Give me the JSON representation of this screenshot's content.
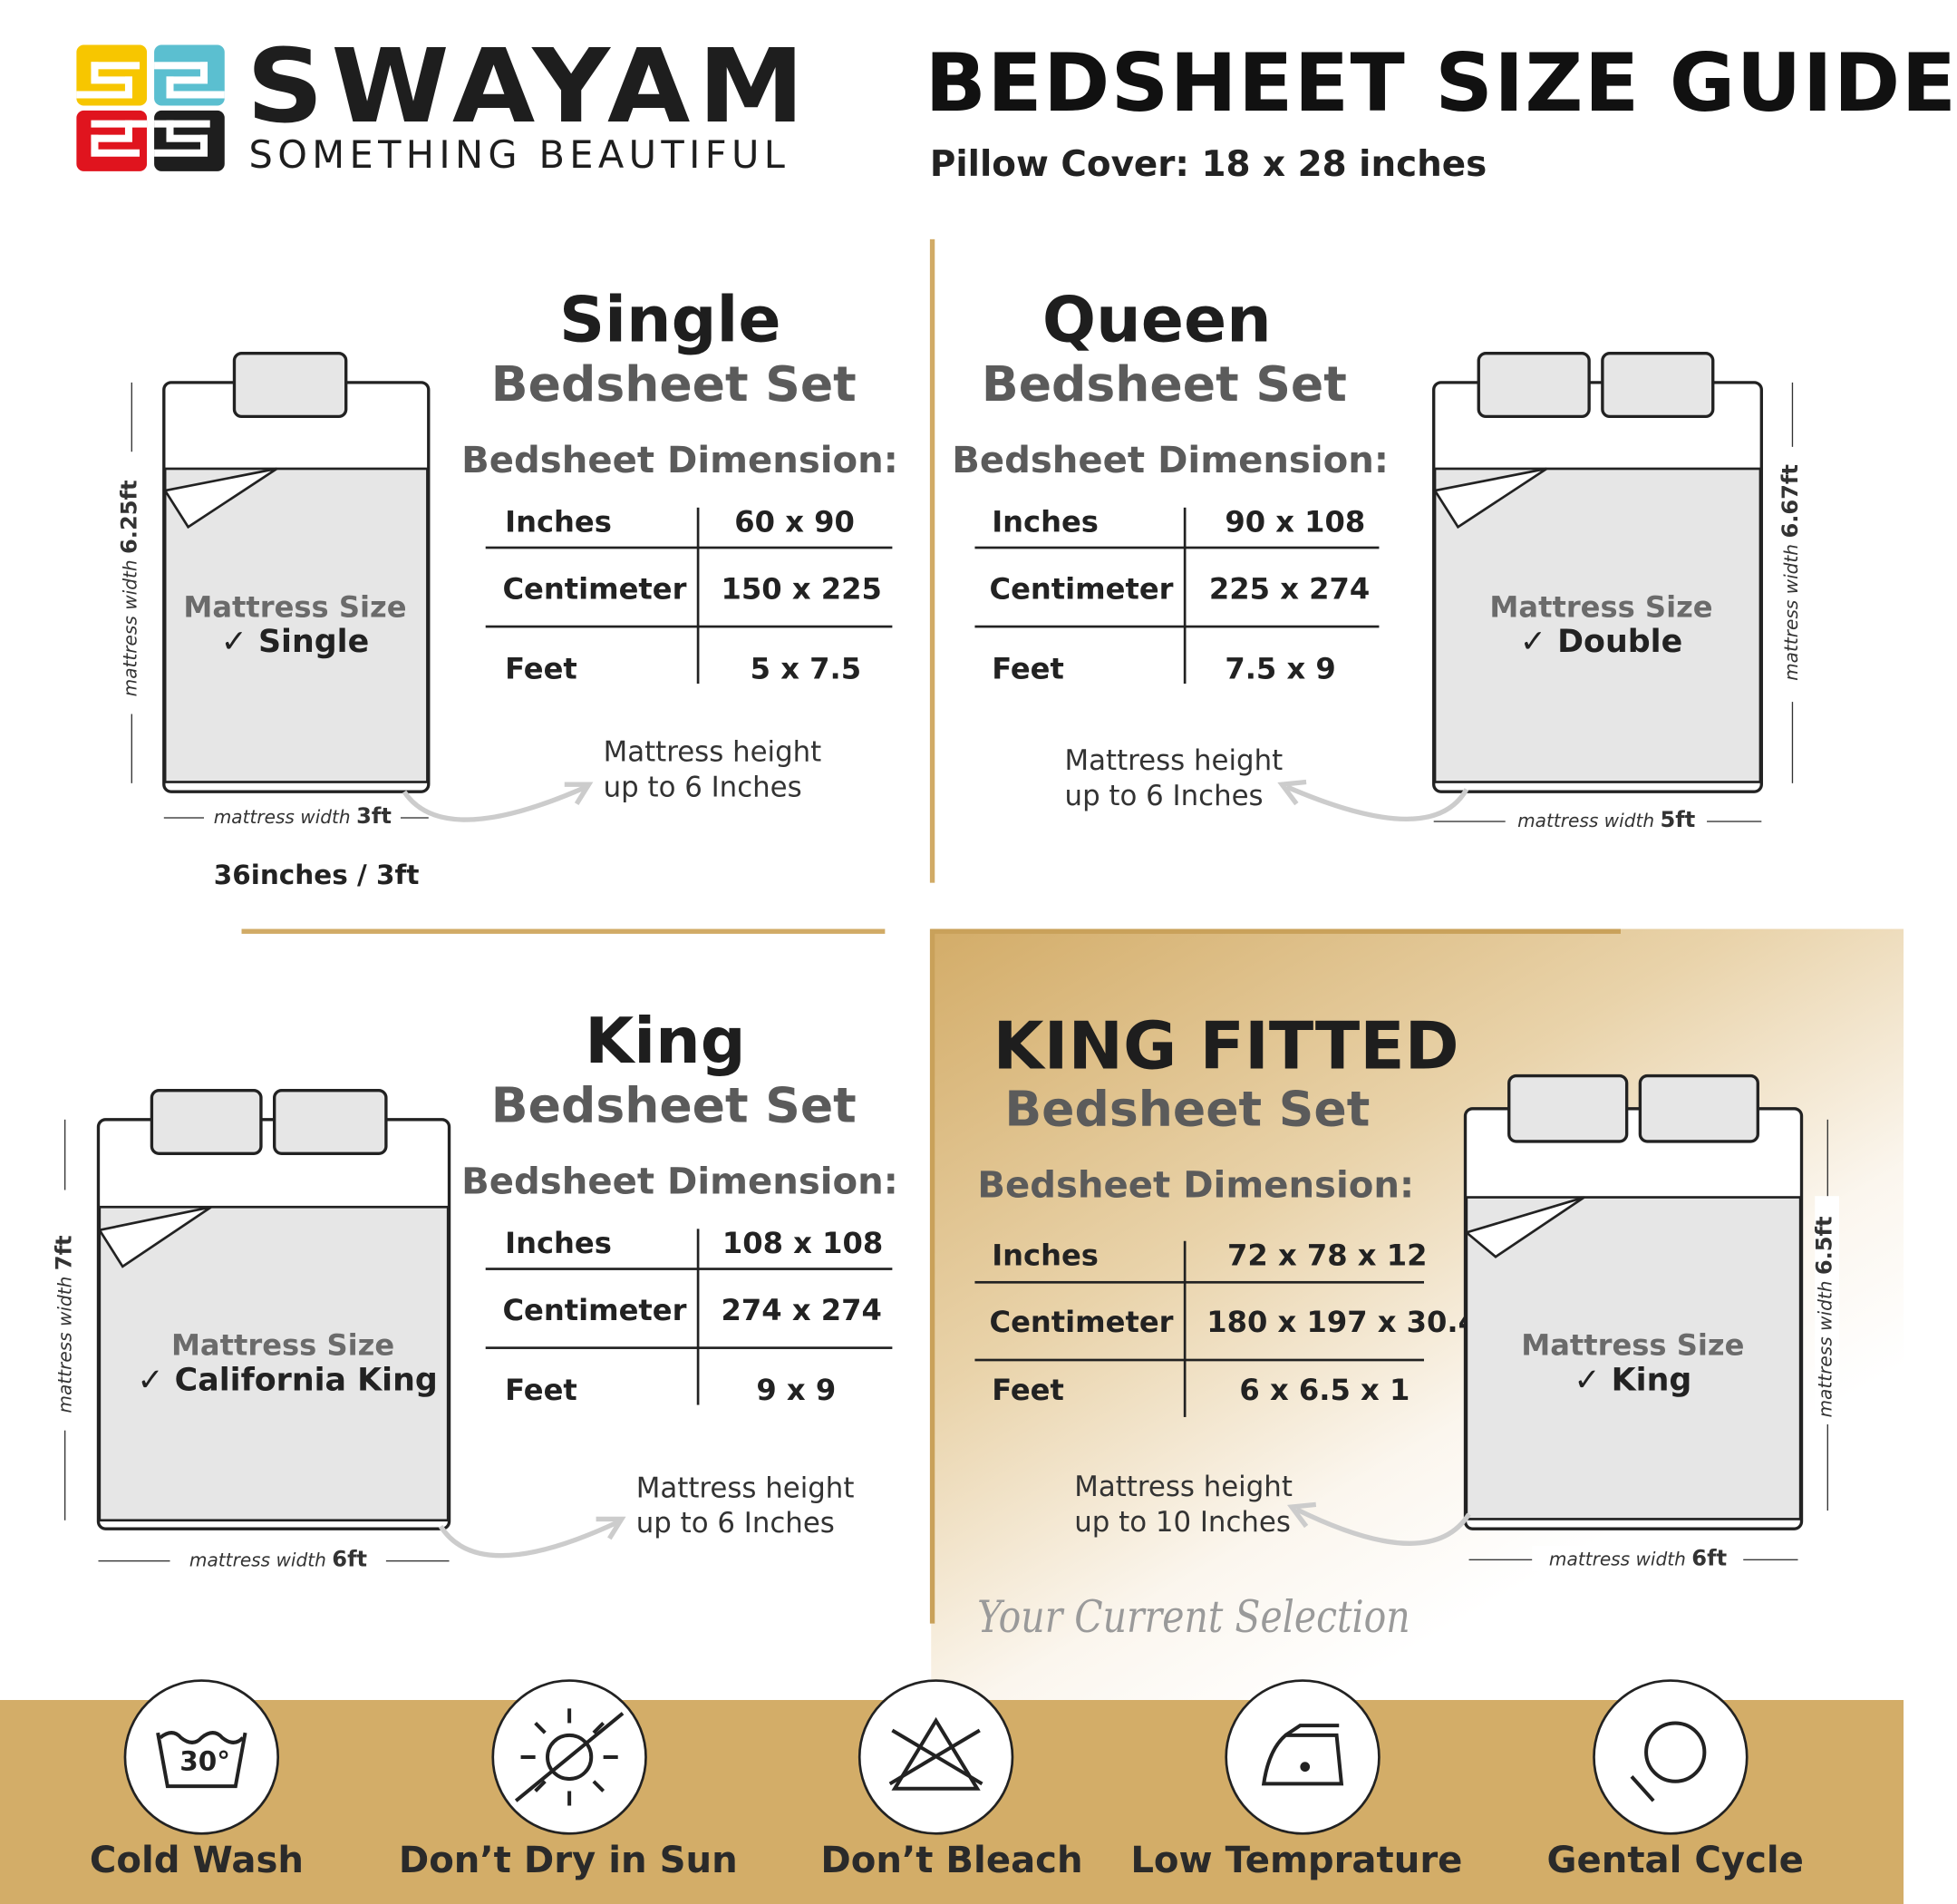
{
  "brand": {
    "name": "SWAYAM",
    "tagline": "SOMETHING BEAUTIFUL",
    "tile_colors": [
      "#f7c600",
      "#5bbfd0",
      "#e0141e",
      "#1e1e1e"
    ]
  },
  "header": {
    "title": "BEDSHEET SIZE GUIDE",
    "pillow_cover": "Pillow Cover: 18 x 28 inches"
  },
  "colors": {
    "gold": "#d1ab66",
    "sheet_gray": "#e6e6e6"
  },
  "panels": {
    "single": {
      "title": "Single",
      "subtitle": "Bedsheet Set",
      "dimension_label": "Bedsheet Dimension:",
      "rows": [
        {
          "unit": "Inches",
          "value": "60 x 90"
        },
        {
          "unit": "Centimeter",
          "value": "150 x 225"
        },
        {
          "unit": "Feet",
          "value": "5 x 7.5"
        }
      ],
      "mattress_size_label": "Mattress Size",
      "mattress_size": "Single",
      "height_note_1": "Mattress height",
      "height_note_2": "up to 6 Inches",
      "length_label": "mattress width",
      "length_value": "6.25ft",
      "width_label": "mattress width",
      "width_value": "3ft",
      "extra": "36inches / 3ft"
    },
    "queen": {
      "title": "Queen",
      "subtitle": "Bedsheet Set",
      "dimension_label": "Bedsheet Dimension:",
      "rows": [
        {
          "unit": "Inches",
          "value": "90 x 108"
        },
        {
          "unit": "Centimeter",
          "value": "225 x 274"
        },
        {
          "unit": "Feet",
          "value": "7.5 x 9"
        }
      ],
      "mattress_size_label": "Mattress Size",
      "mattress_size": "Double",
      "height_note_1": "Mattress height",
      "height_note_2": "up to 6 Inches",
      "length_label": "mattress width",
      "length_value": "6.67ft",
      "width_label": "mattress width",
      "width_value": "5ft"
    },
    "king": {
      "title": "King",
      "subtitle": "Bedsheet Set",
      "dimension_label": "Bedsheet Dimension:",
      "rows": [
        {
          "unit": "Inches",
          "value": "108 x 108"
        },
        {
          "unit": "Centimeter",
          "value": "274 x 274"
        },
        {
          "unit": "Feet",
          "value": "9 x 9"
        }
      ],
      "mattress_size_label": "Mattress Size",
      "mattress_size": "California King",
      "height_note_1": "Mattress height",
      "height_note_2": "up to 6 Inches",
      "length_label": "mattress width",
      "length_value": "7ft",
      "width_label": "mattress width",
      "width_value": "6ft"
    },
    "king_fitted": {
      "title": "KING FITTED",
      "subtitle": "Bedsheet Set",
      "dimension_label": "Bedsheet Dimension:",
      "rows": [
        {
          "unit": "Inches",
          "value": "72 x 78 x 12"
        },
        {
          "unit": "Centimeter",
          "value": "180 x 197 x 30.4"
        },
        {
          "unit": "Feet",
          "value": "6 x 6.5 x 1"
        }
      ],
      "mattress_size_label": "Mattress Size",
      "mattress_size": "King",
      "height_note_1": "Mattress height",
      "height_note_2": "up to 10 Inches",
      "length_label": "mattress width",
      "length_value": "6.5ft",
      "width_label": "mattress width",
      "width_value": "6ft",
      "selection": "Your Current Selection"
    }
  },
  "care": [
    {
      "label": "Cold Wash",
      "icon": "wash-30-icon",
      "temp": "30°"
    },
    {
      "label": "Don’t Dry in Sun",
      "icon": "no-sun-dry-icon"
    },
    {
      "label": "Don’t Bleach",
      "icon": "no-bleach-icon"
    },
    {
      "label": "Low Temprature",
      "icon": "low-iron-icon"
    },
    {
      "label": "Gental Cycle",
      "icon": "gentle-cycle-icon"
    }
  ]
}
